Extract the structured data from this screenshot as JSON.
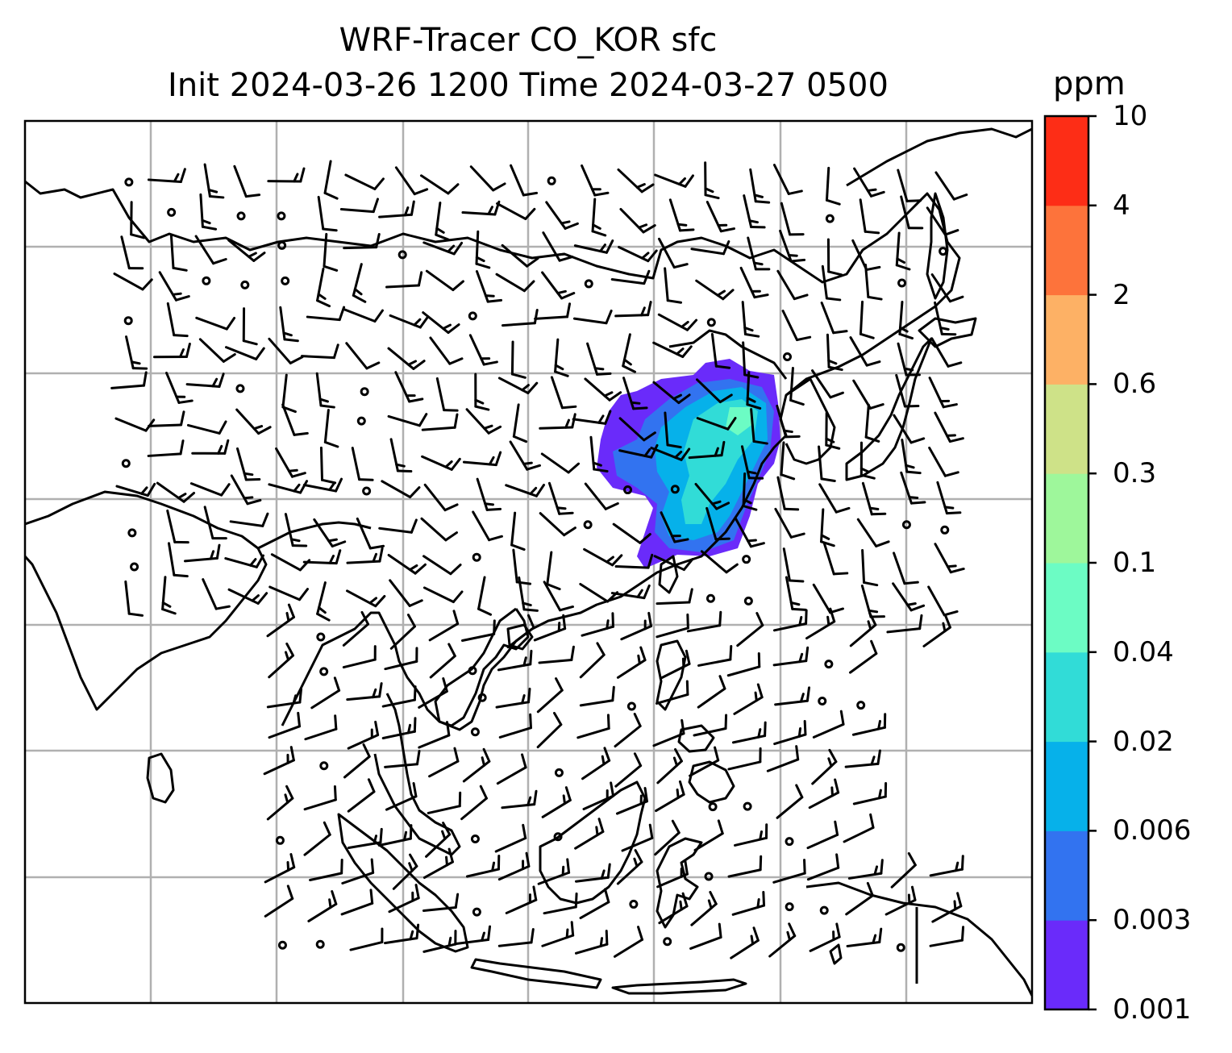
{
  "title": {
    "line1": "WRF-Tracer CO_KOR sfc",
    "line2": "Init 2024-03-26 1200 Time 2024-03-27 0500"
  },
  "colorbar": {
    "unit": "ppm",
    "levels": [
      "0.001",
      "0.003",
      "0.006",
      "0.02",
      "0.04",
      "0.1",
      "0.3",
      "0.6",
      "2",
      "4",
      "10"
    ],
    "colors": [
      "#6a2bfa",
      "#3273f0",
      "#06b1ea",
      "#31dcd7",
      "#6cfcc4",
      "#9ef79b",
      "#cee288",
      "#fdb165",
      "#fd733b",
      "#fd2d16"
    ]
  },
  "map": {
    "features": [
      "coastlines",
      "gridlines",
      "wind-barbs",
      "co-tracer-plume"
    ],
    "gridline_color": "#b0b0b0",
    "plume_colors": [
      "#6a2bfa",
      "#3273f0",
      "#06b1ea",
      "#31dcd7",
      "#6cfcc4"
    ]
  }
}
